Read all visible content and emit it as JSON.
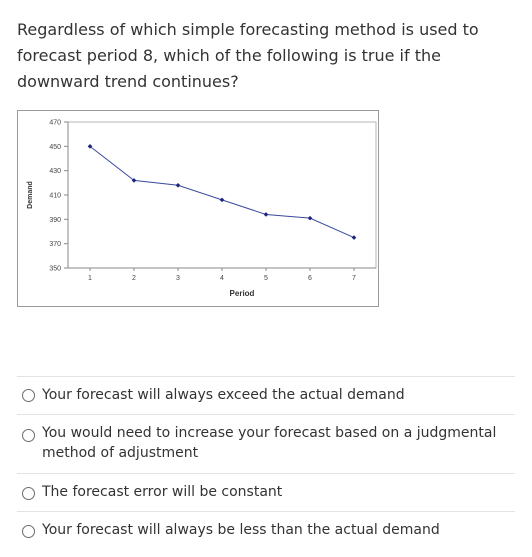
{
  "question": {
    "text": "Regardless of which simple forecasting method is used to forecast period 8, which of the following is true if the downward trend continues?"
  },
  "chart_data": {
    "type": "line",
    "x": [
      1,
      2,
      3,
      4,
      5,
      6,
      7
    ],
    "values": [
      450,
      422,
      418,
      406,
      394,
      391,
      375
    ],
    "xticks": [
      "1",
      "2",
      "3",
      "4",
      "5",
      "6",
      "7"
    ],
    "yticks": [
      "470",
      "450",
      "430",
      "410",
      "390",
      "370",
      "350"
    ],
    "xlabel": "Period",
    "ylabel": "Demand",
    "ylim": [
      350,
      470
    ],
    "xlim": [
      0.5,
      7.5
    ],
    "grid": false,
    "line_color": "#3b4a9e",
    "marker_color": "#1a237e"
  },
  "options": [
    {
      "label": "Your forecast will always exceed the actual demand"
    },
    {
      "label": "You would need to increase your forecast based on a judgmental method of adjustment"
    },
    {
      "label": "The forecast error will be constant"
    },
    {
      "label": "Your forecast will always be less than the actual demand"
    }
  ]
}
